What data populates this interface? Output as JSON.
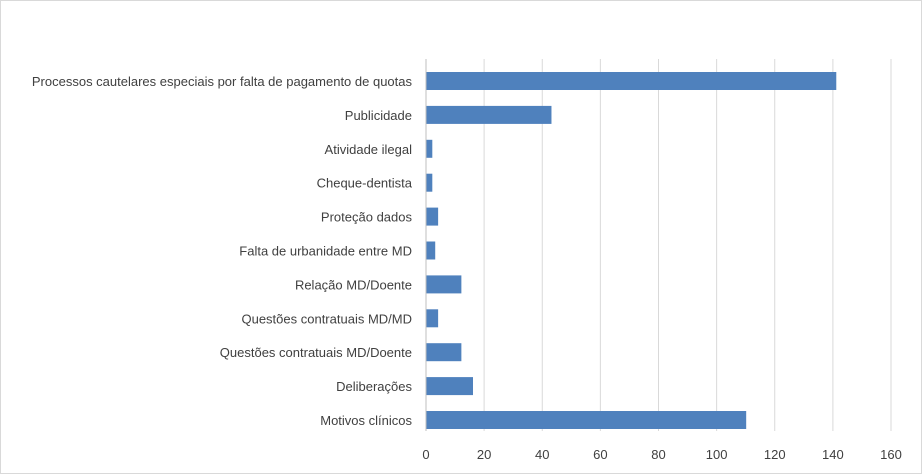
{
  "chart_data": {
    "type": "bar",
    "orientation": "horizontal",
    "title": "",
    "xlabel": "",
    "ylabel": "",
    "categories": [
      "Processos cautelares especiais por falta de pagamento de quotas",
      "Publicidade",
      "Atividade ilegal",
      "Cheque-dentista",
      "Proteção dados",
      "Falta de urbanidade entre MD",
      "Relação MD/Doente",
      "Questões contratuais MD/MD",
      "Questões contratuais MD/Doente",
      "Deliberações",
      "Motivos clínicos"
    ],
    "values": [
      141,
      43,
      2,
      2,
      4,
      3,
      12,
      4,
      12,
      16,
      110
    ],
    "xlim": [
      0,
      160
    ],
    "xticks": [
      "0",
      "20",
      "40",
      "60",
      "80",
      "100",
      "120",
      "140",
      "160"
    ],
    "grid": true,
    "legend": "none",
    "bar_color": "#4f81bd",
    "grid_color": "#d9d9d9"
  }
}
